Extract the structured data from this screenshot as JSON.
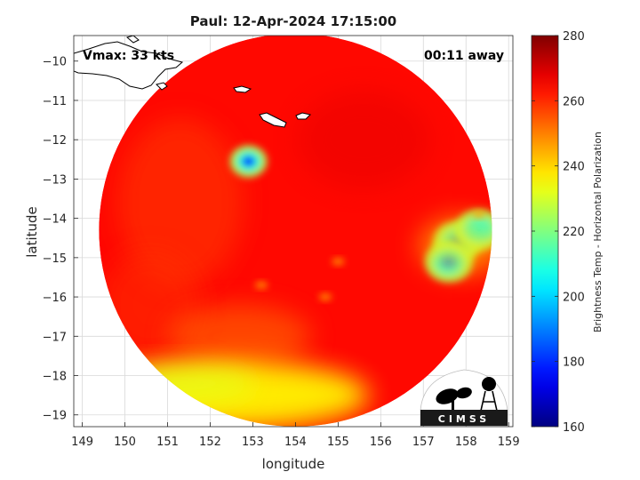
{
  "chart_data": {
    "type": "heatmap",
    "title": "Paul: 12-Apr-2024 17:15:00",
    "xlabel": "longitude",
    "ylabel": "latitude",
    "xlim": [
      148.8,
      159.1
    ],
    "ylim": [
      -19.3,
      -9.35
    ],
    "xticks": [
      149,
      150,
      151,
      152,
      153,
      154,
      155,
      156,
      157,
      158,
      159
    ],
    "yticks": [
      -10,
      -11,
      -12,
      -13,
      -14,
      -15,
      -16,
      -17,
      -18,
      -19
    ],
    "grid": true,
    "annotations": {
      "left": "Vmax: 33 kts",
      "right": "00:11 away"
    },
    "colorbar": {
      "label": "Brightness Temp - Horizontal Polarization",
      "min": 160,
      "max": 280,
      "ticks": [
        160,
        180,
        200,
        220,
        240,
        260,
        280
      ],
      "colormap": "jet",
      "placement": "right"
    },
    "field": {
      "background_value": 264,
      "swath_center": [
        154.0,
        -14.3
      ],
      "swath_radius_deg": 5.0,
      "cold_cells": [
        {
          "lon": 152.9,
          "lat": -12.55,
          "min_value": 182
        },
        {
          "lon": 157.8,
          "lat": -14.6,
          "min_value": 188
        },
        {
          "lon": 157.6,
          "lat": -15.1,
          "min_value": 192
        },
        {
          "lon": 158.3,
          "lat": -14.3,
          "min_value": 205
        }
      ],
      "warm_band": {
        "lat_range": [
          -19.3,
          -17.4
        ],
        "value": 236
      }
    }
  },
  "logo": {
    "text": "CIMSS"
  }
}
